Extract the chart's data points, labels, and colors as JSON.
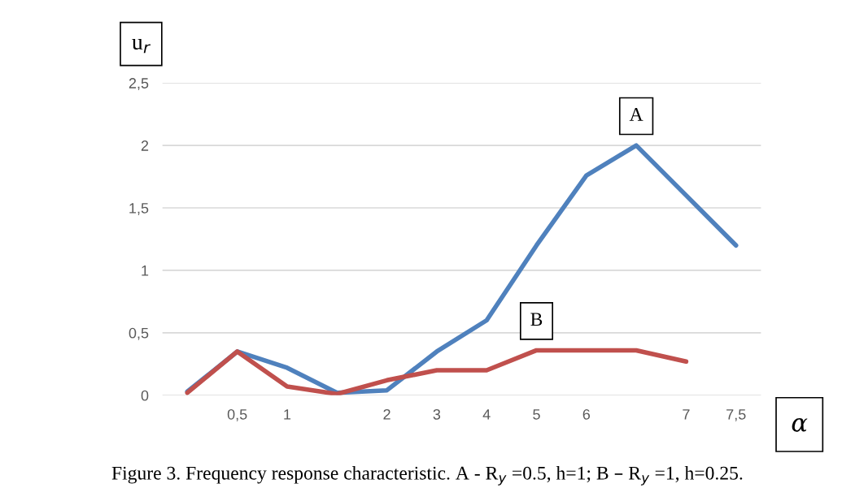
{
  "chart_data": {
    "type": "line",
    "categories": [
      null,
      "0,5",
      "1",
      null,
      "2",
      "3",
      "4",
      "5",
      "6",
      null,
      "7",
      "7,5"
    ],
    "series": [
      {
        "name": "A",
        "color": "#4f81bd",
        "values": [
          0.03,
          0.35,
          0.22,
          0.02,
          0.04,
          0.35,
          0.6,
          1.2,
          1.76,
          2.0,
          1.6,
          1.2
        ]
      },
      {
        "name": "B",
        "color": "#c0504d",
        "values": [
          0.02,
          0.35,
          0.07,
          0.01,
          0.12,
          0.2,
          0.2,
          0.36,
          0.36,
          0.36,
          0.27,
          null
        ]
      }
    ],
    "ylabel": "u$_{r}$",
    "xlabel": "α",
    "ylim": [
      0,
      2.5
    ],
    "yticks": [
      {
        "value": 0,
        "label": "0"
      },
      {
        "value": 0.5,
        "label": "0,5"
      },
      {
        "value": 1,
        "label": "1"
      },
      {
        "value": 1.5,
        "label": "1,5"
      },
      {
        "value": 2,
        "label": "2"
      },
      {
        "value": 2.5,
        "label": "2,5"
      }
    ],
    "grid": "y",
    "legend": false,
    "marker": "none",
    "line_style": "solid",
    "annotations": [
      "Figure 3. Frequency response characteristic. A - R$_{y}$ =0.5, h=1; B – R$_{y}$ =1, h=0.25."
    ]
  }
}
